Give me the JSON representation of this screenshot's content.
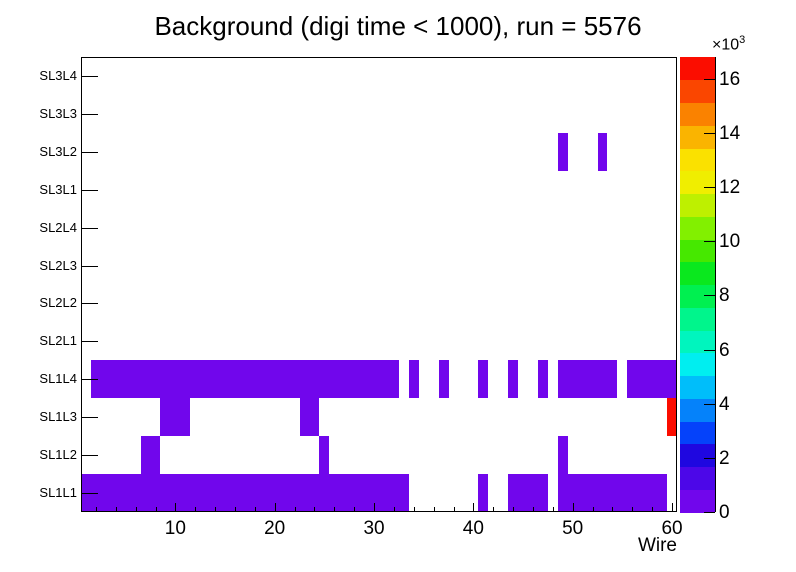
{
  "title": "Background (digi time < 1000), run = 5576",
  "chart_data": {
    "type": "heatmap",
    "title": "Background (digi time < 1000), run = 5576",
    "xlabel": "Wire",
    "x_range": [
      0.5,
      60.5
    ],
    "x_ticks": [
      10,
      20,
      30,
      40,
      50,
      60
    ],
    "y_categories": [
      "SL1L1",
      "SL1L2",
      "SL1L3",
      "SL1L4",
      "SL2L1",
      "SL2L2",
      "SL2L3",
      "SL2L4",
      "SL3L1",
      "SL3L2",
      "SL3L3",
      "SL3L4"
    ],
    "z_axis": {
      "ticks": [
        0,
        2,
        4,
        6,
        8,
        10,
        12,
        14,
        16
      ],
      "tick_unit": 1000,
      "max": 16800,
      "n_bands": 20,
      "scale": {
        "text": "×10",
        "exp": "3"
      }
    },
    "palette": [
      "#7106EC",
      "#4C07E8",
      "#1F07E0",
      "#0542FA",
      "#0582FA",
      "#00BEFA",
      "#00EEF0",
      "#00F5BE",
      "#00F58C",
      "#00F050",
      "#0AE81E",
      "#46E800",
      "#82F000",
      "#BEF000",
      "#F0EE00",
      "#FAE100",
      "#FAB400",
      "#FA8200",
      "#FA4600",
      "#FB0D00"
    ],
    "cells": [
      {
        "layer": "SL1L1",
        "wire_ranges": [
          [
            1,
            33
          ],
          [
            41,
            41
          ],
          [
            44,
            47
          ],
          [
            49,
            59
          ]
        ],
        "value": 500
      },
      {
        "layer": "SL1L2",
        "wire_ranges": [
          [
            7,
            8
          ],
          [
            25,
            25
          ],
          [
            49,
            49
          ]
        ],
        "value": 500
      },
      {
        "layer": "SL1L3",
        "wire_ranges": [
          [
            9,
            11
          ],
          [
            23,
            24
          ]
        ],
        "value": 500
      },
      {
        "layer": "SL1L3",
        "wire_ranges": [
          [
            60,
            60
          ]
        ],
        "value": 16700
      },
      {
        "layer": "SL1L4",
        "wire_ranges": [
          [
            2,
            32
          ],
          [
            34,
            34
          ],
          [
            37,
            37
          ],
          [
            41,
            41
          ],
          [
            44,
            44
          ],
          [
            47,
            47
          ],
          [
            49,
            54
          ],
          [
            56,
            60
          ]
        ],
        "value": 500
      },
      {
        "layer": "SL3L2",
        "wire_ranges": [
          [
            49,
            49
          ],
          [
            53,
            53
          ]
        ],
        "value": 500
      }
    ]
  }
}
